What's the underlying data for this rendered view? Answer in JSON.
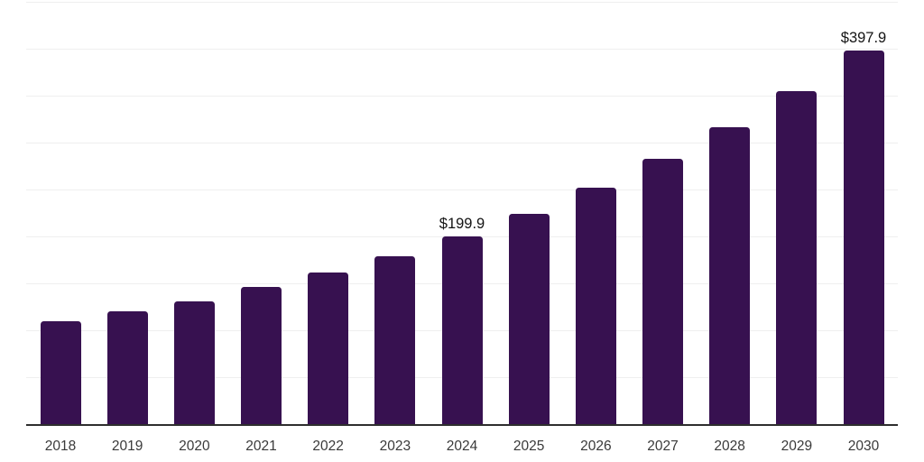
{
  "chart_data": {
    "type": "bar",
    "title": "",
    "xlabel": "",
    "ylabel": "",
    "categories": [
      "2018",
      "2019",
      "2020",
      "2021",
      "2022",
      "2023",
      "2024",
      "2025",
      "2026",
      "2027",
      "2028",
      "2029",
      "2030"
    ],
    "values": [
      109.4,
      120.0,
      130.6,
      145.5,
      161.5,
      178.8,
      199.9,
      224.2,
      251.5,
      282.1,
      316.4,
      354.8,
      397.9
    ],
    "value_labels": [
      "",
      "",
      "",
      "",
      "",
      "",
      "$199.9",
      "",
      "",
      "",
      "",
      "",
      "$397.9"
    ],
    "ylim": [
      0,
      450
    ],
    "gridline_step": 50,
    "grid": true,
    "legend": false,
    "y_axis_ticks_visible": false,
    "colors": {
      "bar": "#371150",
      "axis": "#2e2e2e",
      "gridline": "#efefef",
      "value_label": "#141414",
      "tick_label": "#3a3a3a",
      "background": "#ffffff"
    }
  }
}
